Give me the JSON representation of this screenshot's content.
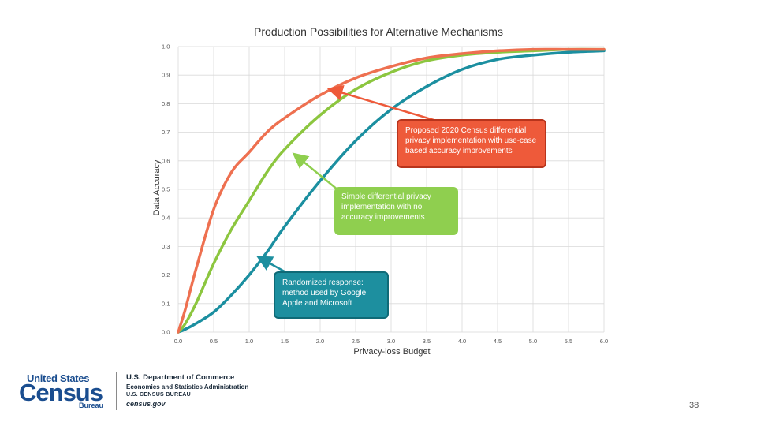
{
  "chart_data": {
    "type": "line",
    "title": "Production Possibilities for Alternative Mechanisms",
    "xlabel": "Privacy-loss Budget",
    "ylabel": "Data Accuracy",
    "xlim": [
      0,
      6
    ],
    "ylim": [
      0,
      1
    ],
    "x_ticks": [
      "0.0",
      "0.5",
      "1.0",
      "1.5",
      "2.0",
      "2.5",
      "3.0",
      "3.5",
      "4.0",
      "4.5",
      "5.0",
      "5.5",
      "6.0"
    ],
    "y_ticks": [
      "0.0",
      "0.1",
      "0.2",
      "0.3",
      "0.4",
      "0.5",
      "0.6",
      "0.7",
      "0.8",
      "0.9",
      "1.0"
    ],
    "grid": true,
    "series": [
      {
        "key": "randomized",
        "color": "#1b8fa0",
        "x": [
          0,
          0.1,
          0.25,
          0.5,
          0.75,
          1.0,
          1.25,
          1.5,
          2.0,
          2.5,
          3.0,
          3.5,
          4.0,
          4.5,
          5.0,
          5.5,
          6.0
        ],
        "y": [
          0.0,
          0.01,
          0.03,
          0.07,
          0.13,
          0.2,
          0.28,
          0.37,
          0.53,
          0.67,
          0.78,
          0.86,
          0.92,
          0.955,
          0.97,
          0.98,
          0.985
        ]
      },
      {
        "key": "simple",
        "color": "#8cc63f",
        "x": [
          0,
          0.1,
          0.25,
          0.5,
          0.75,
          1.0,
          1.25,
          1.5,
          2.0,
          2.5,
          3.0,
          3.5,
          4.0,
          4.5,
          5.0,
          5.5,
          6.0
        ],
        "y": [
          0.0,
          0.03,
          0.1,
          0.24,
          0.36,
          0.46,
          0.56,
          0.64,
          0.76,
          0.85,
          0.91,
          0.95,
          0.97,
          0.98,
          0.985,
          0.99,
          0.99
        ]
      },
      {
        "key": "proposed",
        "color": "#ee7050",
        "x": [
          0,
          0.1,
          0.25,
          0.5,
          0.75,
          1.0,
          1.25,
          1.5,
          2.0,
          2.5,
          3.0,
          3.5,
          4.0,
          4.5,
          5.0,
          5.5,
          6.0
        ],
        "y": [
          0.0,
          0.08,
          0.22,
          0.43,
          0.56,
          0.63,
          0.7,
          0.75,
          0.83,
          0.89,
          0.93,
          0.96,
          0.975,
          0.985,
          0.99,
          0.99,
          0.99
        ]
      }
    ],
    "annotations": [
      {
        "key": "proposed",
        "text": "Proposed 2020 Census differential privacy implementation with use-case based accuracy improvements",
        "arrow_to": [
          2.15,
          0.85
        ],
        "color": "#ee5a3a"
      },
      {
        "key": "simple",
        "text": "Simple differential privacy implementation with no accuracy improvements",
        "arrow_to": [
          1.65,
          0.62
        ],
        "color": "#8fcf4f"
      },
      {
        "key": "randomized",
        "text": "Randomized response: method used by Google, Apple and Microsoft",
        "arrow_to": [
          1.15,
          0.26
        ],
        "color": "#1d8f9f"
      }
    ]
  },
  "footer": {
    "logo_us": "United States",
    "logo_census": "Census",
    "logo_bureau": "Bureau",
    "line1": "U.S. Department of Commerce",
    "line2": "Economics and Statistics Administration",
    "line3": "U.S. CENSUS BUREAU",
    "line4": "census.gov",
    "logo_color": "#1a4d8f"
  },
  "page_number": "38"
}
